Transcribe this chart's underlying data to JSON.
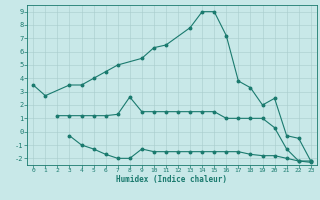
{
  "line1_x": [
    0,
    1,
    3,
    4,
    5,
    6,
    7,
    9,
    10,
    11,
    13,
    14,
    15,
    16,
    17,
    18,
    19,
    20,
    21,
    22,
    23
  ],
  "line1_y": [
    3.5,
    2.7,
    3.5,
    3.5,
    4.0,
    4.5,
    5.0,
    5.5,
    6.3,
    6.5,
    7.8,
    9.0,
    9.0,
    7.2,
    3.8,
    3.3,
    2.0,
    2.5,
    -0.3,
    -0.5,
    -2.2
  ],
  "line2_x": [
    2,
    3,
    4,
    5,
    6,
    7,
    8,
    9,
    10,
    11,
    12,
    13,
    14,
    15,
    16,
    17,
    18,
    19,
    20,
    21,
    22,
    23
  ],
  "line2_y": [
    1.2,
    1.2,
    1.2,
    1.2,
    1.2,
    1.3,
    2.6,
    1.5,
    1.5,
    1.5,
    1.5,
    1.5,
    1.5,
    1.5,
    1.0,
    1.0,
    1.0,
    1.0,
    0.3,
    -1.3,
    -2.2,
    -2.2
  ],
  "line3_x": [
    3,
    4,
    5,
    6,
    7,
    8,
    9,
    10,
    11,
    12,
    13,
    14,
    15,
    16,
    17,
    18,
    19,
    20,
    21,
    22,
    23
  ],
  "line3_y": [
    -0.3,
    -1.0,
    -1.3,
    -1.7,
    -2.0,
    -2.0,
    -1.3,
    -1.5,
    -1.5,
    -1.5,
    -1.5,
    -1.5,
    -1.5,
    -1.5,
    -1.5,
    -1.7,
    -1.8,
    -1.8,
    -2.0,
    -2.2,
    -2.3
  ],
  "color": "#1a7a6e",
  "bg_color": "#c8e8e8",
  "grid_color": "#a8cccc",
  "xlabel": "Humidex (Indice chaleur)",
  "xlim": [
    -0.5,
    23.5
  ],
  "ylim": [
    -2.5,
    9.5
  ],
  "yticks": [
    -2,
    -1,
    0,
    1,
    2,
    3,
    4,
    5,
    6,
    7,
    8,
    9
  ],
  "xticks": [
    0,
    1,
    2,
    3,
    4,
    5,
    6,
    7,
    8,
    9,
    10,
    11,
    12,
    13,
    14,
    15,
    16,
    17,
    18,
    19,
    20,
    21,
    22,
    23
  ]
}
